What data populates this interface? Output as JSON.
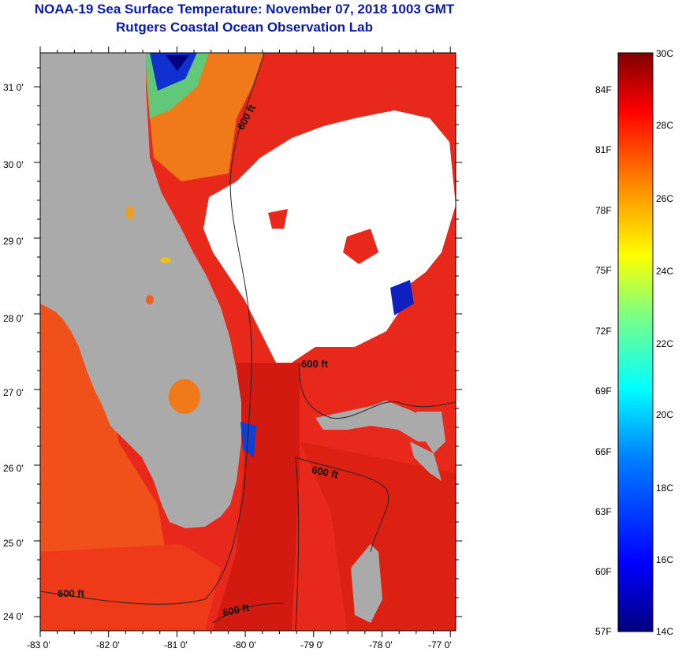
{
  "header": {
    "title": "NOAA-19 Sea Surface Temperature:  November 07, 2018 1003 GMT",
    "subtitle": "Rutgers Coastal Ocean Observation Lab"
  },
  "map": {
    "lon_labels": [
      "-83 0'",
      "-82 0'",
      "-81 0'",
      "-80 0'",
      "-79 0'",
      "-78 0'",
      "-77 0'"
    ],
    "lat_labels": [
      "31 0'",
      "30 0'",
      "29 0'",
      "28 0'",
      "27 0'",
      "26 0'",
      "25 0'",
      "24 0'"
    ],
    "contour_labels": [
      "600 ft",
      "600 ft",
      "600 ft",
      "600 ft",
      "600 ft"
    ],
    "colors": {
      "land": "#aaaaaa",
      "cloud": "#ffffff",
      "warm": "#e8281a",
      "hot": "#d81a10"
    }
  },
  "colorbar": {
    "celsius_labels": [
      "30C",
      "28C",
      "26C",
      "24C",
      "22C",
      "20C",
      "18C",
      "16C",
      "14C"
    ],
    "fahrenheit_labels": [
      "84F",
      "81F",
      "78F",
      "75F",
      "72F",
      "69F",
      "66F",
      "63F",
      "60F",
      "57F"
    ],
    "stops": [
      "#00007f",
      "#0000ff",
      "#0080ff",
      "#00ffff",
      "#80ff80",
      "#ffff00",
      "#ff8000",
      "#ff0000",
      "#7f0000"
    ]
  }
}
